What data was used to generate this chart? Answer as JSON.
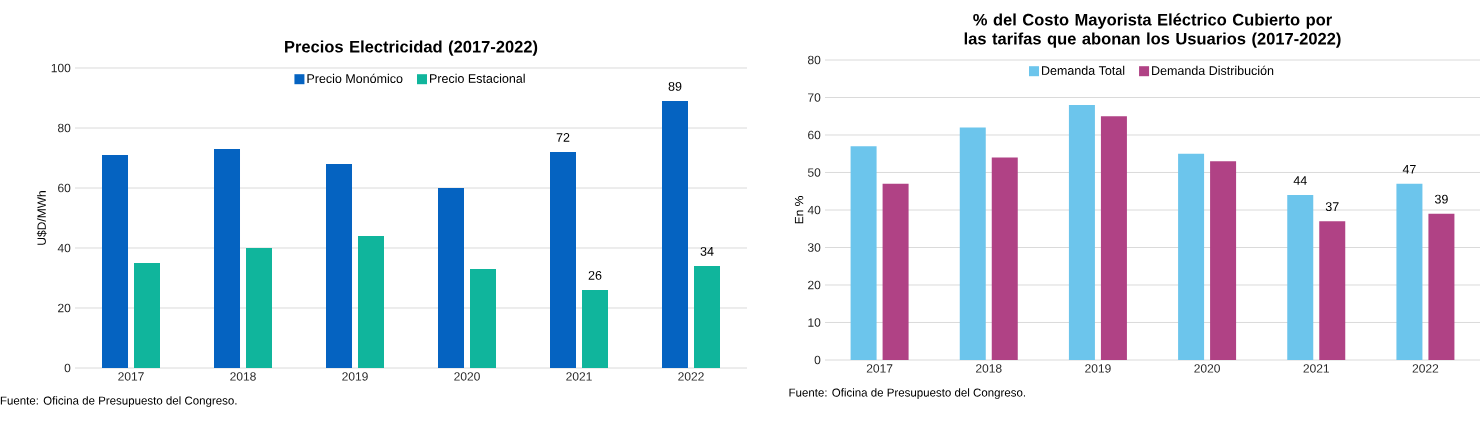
{
  "chart_data": [
    {
      "type": "bar",
      "title": "Precios Electricidad (2017-2022)",
      "ylabel": "U$D/MWh",
      "categories": [
        "2017",
        "2018",
        "2019",
        "2020",
        "2021",
        "2022"
      ],
      "series": [
        {
          "name": "Precio Monómico",
          "color": "#0563c1",
          "values": [
            71,
            73,
            68,
            60,
            72,
            89
          ],
          "value_labels": [
            null,
            null,
            null,
            null,
            "72",
            "89"
          ]
        },
        {
          "name": "Precio Estacional",
          "color": "#10b59c",
          "values": [
            35,
            40,
            44,
            33,
            26,
            34
          ],
          "value_labels": [
            null,
            null,
            null,
            null,
            "26",
            "34"
          ]
        }
      ],
      "ylim": [
        0,
        100
      ],
      "yticks": [
        0,
        20,
        40,
        60,
        80,
        100
      ],
      "grid": "y",
      "legend": "top",
      "annotations": [
        "Fuente: Oficina de Presupuesto del Congreso."
      ]
    },
    {
      "type": "bar",
      "title": "% del Costo Mayorista Eléctrico Cubierto por las tarifas que abonan los Usuarios (2017-2022)",
      "ylabel": "En %",
      "categories": [
        "2017",
        "2018",
        "2019",
        "2020",
        "2021",
        "2022"
      ],
      "series": [
        {
          "name": "Demanda Total",
          "color": "#6cc5ec",
          "values": [
            57,
            62,
            68,
            55,
            44,
            47
          ],
          "value_labels": [
            null,
            null,
            null,
            null,
            "44",
            "47"
          ]
        },
        {
          "name": "Demanda Distribución",
          "color": "#b04285",
          "values": [
            47,
            54,
            65,
            53,
            37,
            39
          ],
          "value_labels": [
            null,
            null,
            null,
            null,
            "37",
            "39"
          ]
        }
      ],
      "ylim": [
        0,
        80
      ],
      "yticks": [
        0,
        10,
        20,
        30,
        40,
        50,
        60,
        70,
        80
      ],
      "grid": "y",
      "legend": "top",
      "annotations": [
        "Fuente: Oficina de Presupuesto del Congreso."
      ]
    }
  ]
}
